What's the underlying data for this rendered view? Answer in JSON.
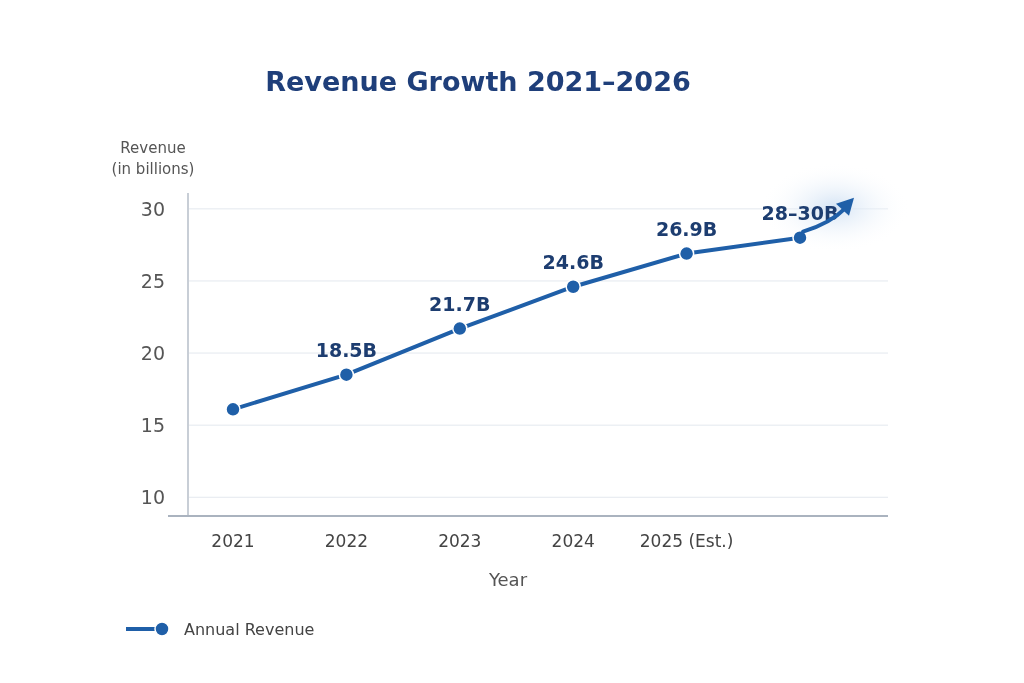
{
  "chart_data": {
    "type": "line",
    "title": "Revenue Growth 2021–2026",
    "xlabel": "Year",
    "ylabel": "Revenue\n(in billions)",
    "categories": [
      "2021",
      "2022",
      "2023",
      "2024",
      "2025 (Est.)",
      null
    ],
    "series": [
      {
        "name": "Annual Revenue",
        "color": "#1f5fa8",
        "values": [
          16.1,
          18.5,
          21.7,
          24.6,
          26.9,
          28
        ],
        "value_labels": [
          null,
          "18.5B",
          "21.7B",
          "24.6B",
          "26.9B",
          "28–30B"
        ]
      }
    ],
    "ylim": [
      8.7,
      31.1
    ],
    "yticks": [
      10,
      15,
      20,
      25,
      30
    ],
    "grid": "y",
    "legend": "bottom left",
    "marker": "circle",
    "line_style": "solid"
  }
}
